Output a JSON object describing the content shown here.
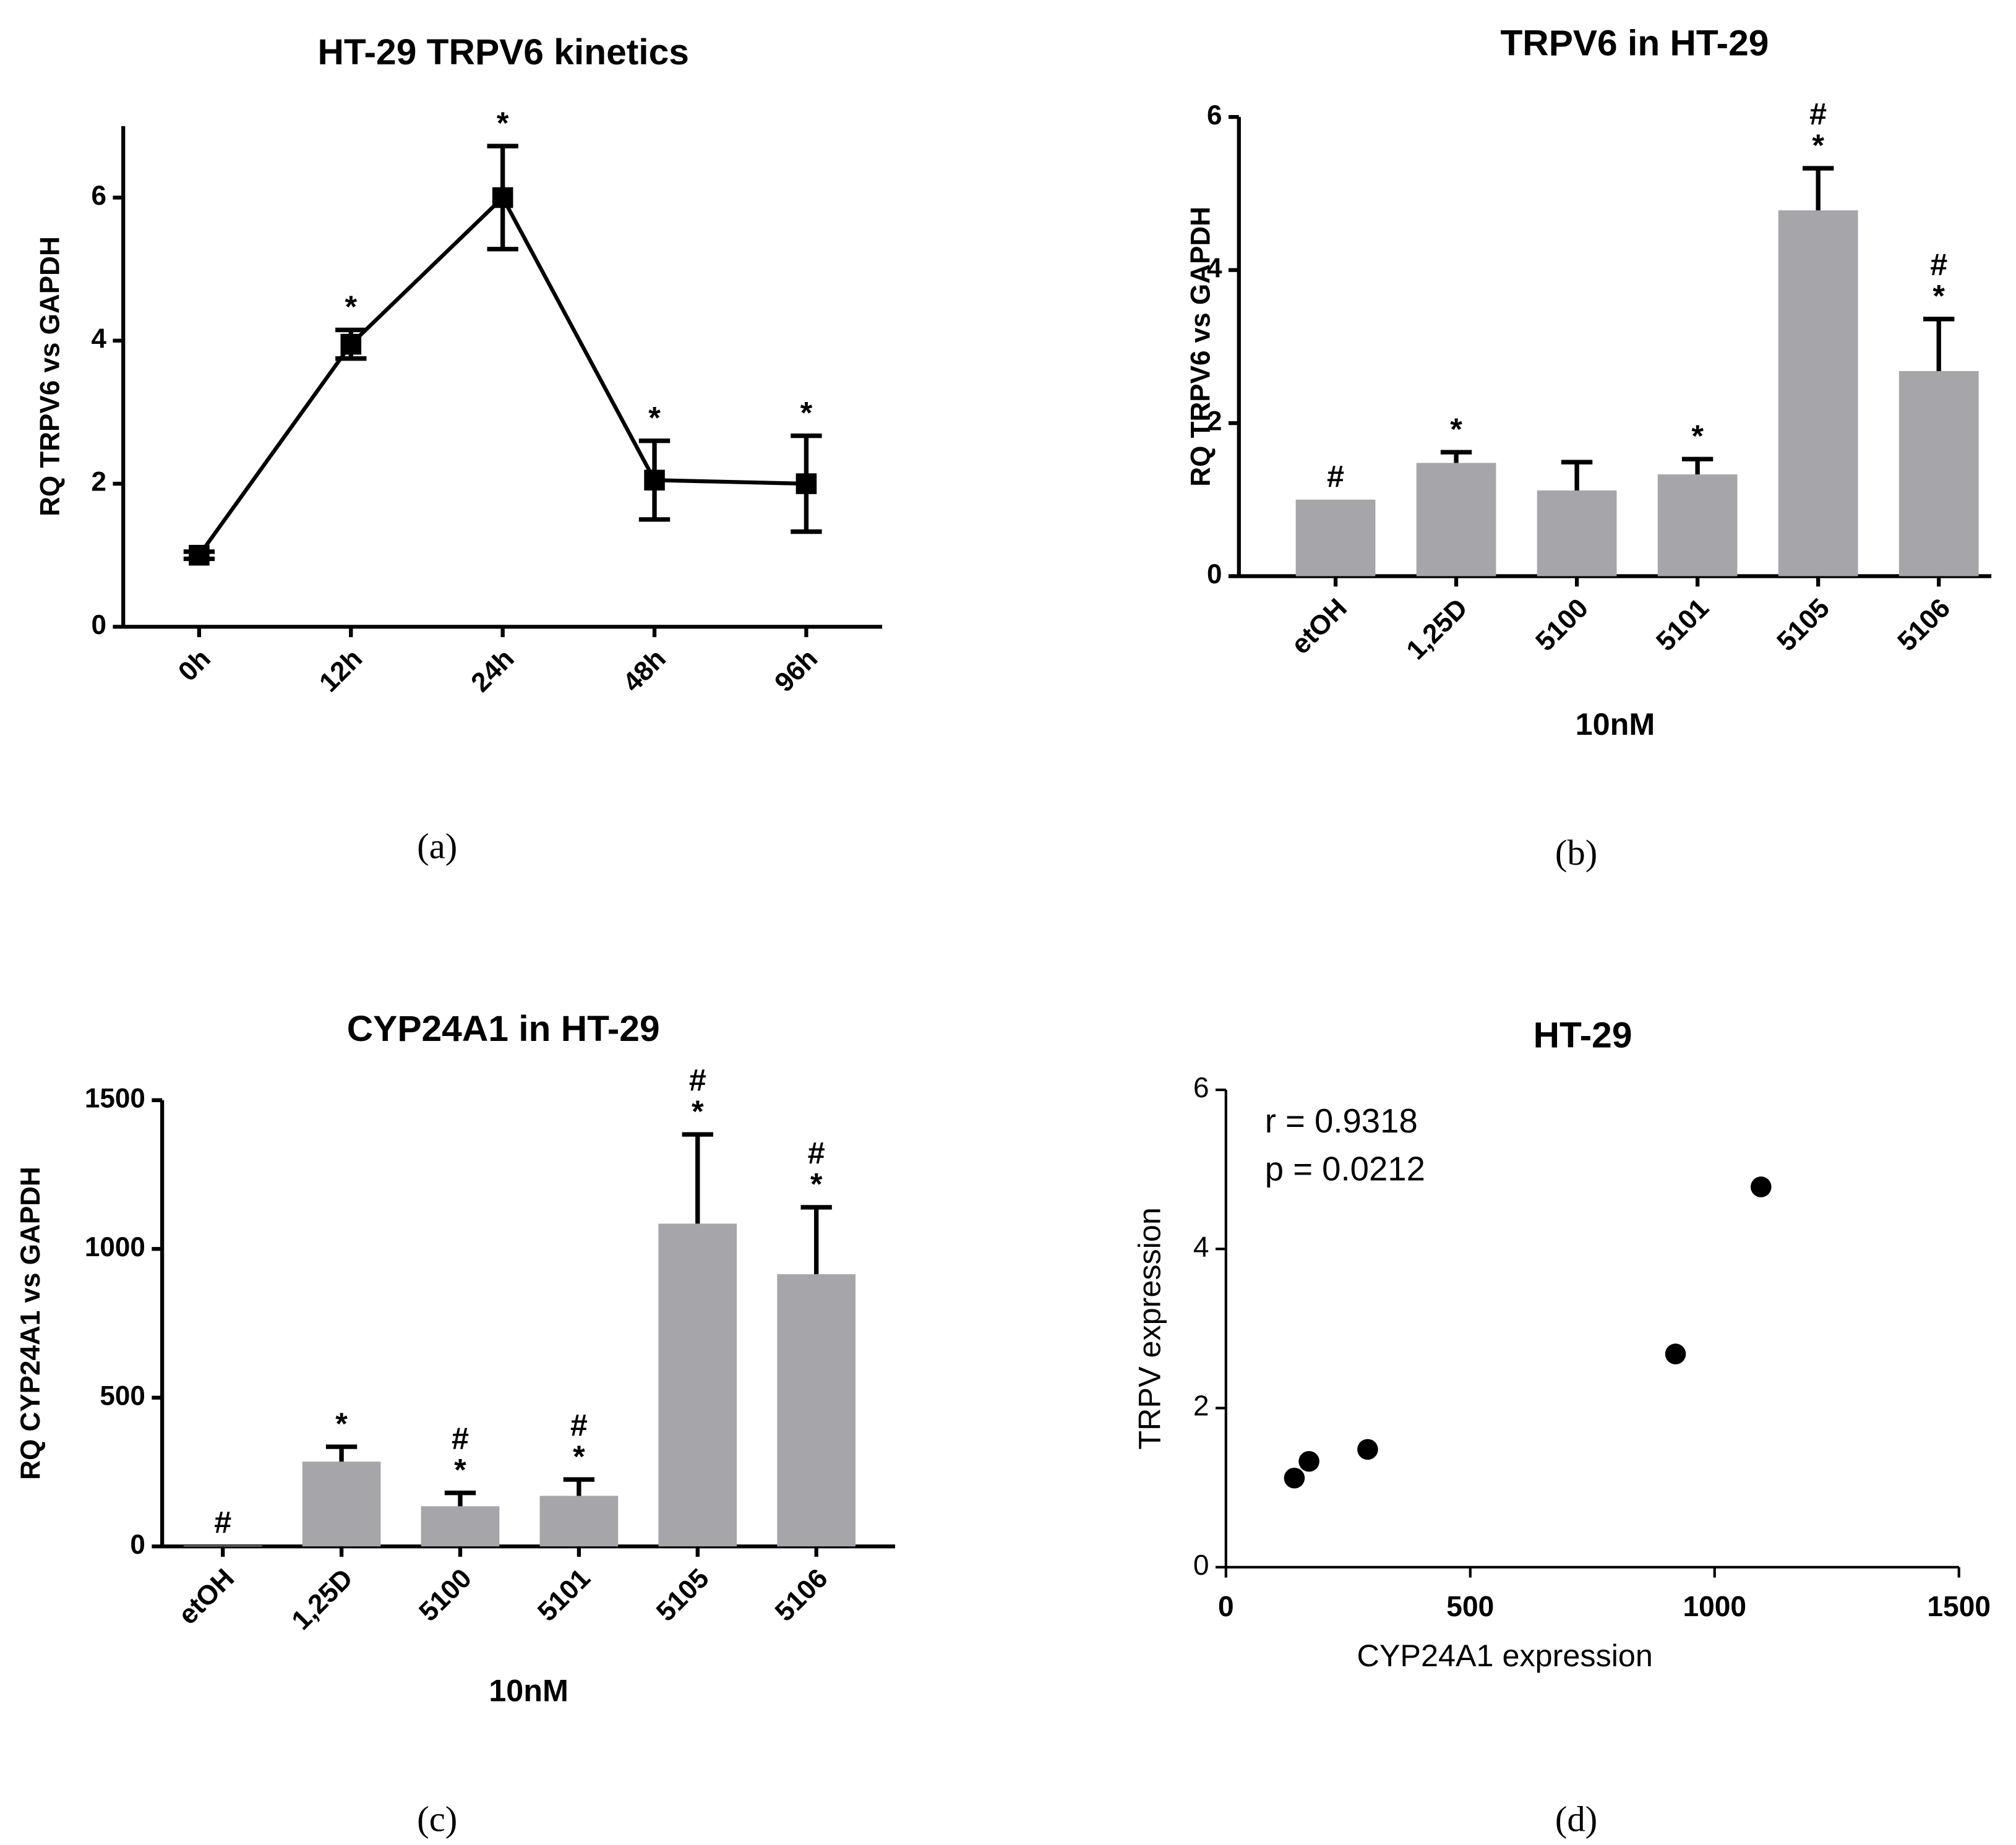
{
  "chart_data": [
    {
      "type": "line",
      "title": "HT-29 TRPV6 kinetics",
      "panel_label": "(a)",
      "ylabel": "RQ TRPV6 vs GAPDH",
      "categories": [
        "0h",
        "12h",
        "24h",
        "48h",
        "96h"
      ],
      "values": [
        1,
        3.95,
        6.0,
        2.05,
        2.0
      ],
      "errors": [
        0.05,
        0.2,
        0.72,
        0.55,
        0.67
      ],
      "annotations": [
        [],
        [
          "*"
        ],
        [
          "*"
        ],
        [
          "*"
        ],
        [
          "*"
        ]
      ],
      "color": "#000000",
      "ylim": [
        0,
        7
      ],
      "yticks": [
        0,
        2,
        4,
        6
      ]
    },
    {
      "type": "bar",
      "title": "TRPV6 in HT-29",
      "panel_label": "(b)",
      "ylabel": "RQ TRPV6 vs GAPDH",
      "xlabel": "10nM",
      "categories": [
        "etOH",
        "1,25D",
        "5100",
        "5101",
        "5105",
        "5106"
      ],
      "values": [
        1,
        1.48,
        1.12,
        1.33,
        4.78,
        2.68
      ],
      "errors": [
        null,
        0.14,
        0.37,
        0.2,
        0.55,
        0.68
      ],
      "annotations": [
        [
          "#"
        ],
        [
          "*"
        ],
        [],
        [
          "*"
        ],
        [
          "#",
          "*"
        ],
        [
          "#",
          "*"
        ]
      ],
      "color": "#a5a5aa",
      "ylim": [
        0,
        6
      ],
      "yticks": [
        0,
        2,
        4,
        6
      ]
    },
    {
      "type": "bar",
      "title": "CYP24A1 in HT-29",
      "panel_label": "(c)",
      "ylabel": "RQ CYP24A1 vs GAPDH",
      "xlabel": "10nM",
      "categories": [
        "etOH",
        "1,25D",
        "5100",
        "5101",
        "5105",
        "5106"
      ],
      "values": [
        3,
        285,
        135,
        170,
        1085,
        915
      ],
      "errors": [
        null,
        50,
        45,
        55,
        300,
        225
      ],
      "annotations": [
        [
          "#"
        ],
        [
          "*"
        ],
        [
          "#",
          "*"
        ],
        [
          "#",
          "*"
        ],
        [
          "#",
          "*"
        ],
        [
          "#",
          "*"
        ]
      ],
      "color": "#a5a5aa",
      "ylim": [
        0,
        1500
      ],
      "yticks": [
        0,
        500,
        1000,
        1500
      ]
    },
    {
      "type": "scatter",
      "title": "HT-29",
      "panel_label": "(d)",
      "ylabel": "TRPV expression",
      "xlabel": "CYP24A1 expression",
      "annotations": [
        "r = 0.9318",
        "p = 0.0212"
      ],
      "x": [
        140,
        170,
        290,
        920,
        1095
      ],
      "values": [
        1.12,
        1.33,
        1.48,
        2.68,
        4.78
      ],
      "color": "#000000",
      "xlim": [
        0,
        1500
      ],
      "xticks": [
        0,
        500,
        1000,
        1500
      ],
      "ylim": [
        0,
        6
      ],
      "yticks": [
        0,
        2,
        4,
        6
      ]
    }
  ]
}
